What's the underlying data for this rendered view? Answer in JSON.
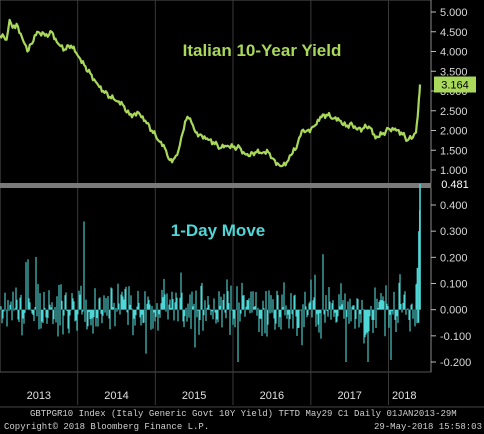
{
  "chart_data": [
    {
      "type": "line",
      "title": "Italian 10-Year Yield",
      "color": "#a9d85a",
      "ylim": [
        0.8,
        5.2
      ],
      "y_ticks": [
        "5.000",
        "4.500",
        "4.000",
        "3.500",
        "3.000",
        "2.500",
        "2.000",
        "1.500",
        "1.000"
      ],
      "last_value_label": "3.164",
      "last_value": 3.164,
      "series": [
        {
          "x": [
            "2013-01-01",
            "2013-02-01",
            "2013-02-15",
            "2013-03-01",
            "2013-03-20",
            "2013-04-15",
            "2013-05-10",
            "2013-06-01",
            "2013-06-25",
            "2013-08-01",
            "2013-09-01",
            "2013-10-01",
            "2013-11-01",
            "2013-12-01",
            "2014-01-01",
            "2014-02-01",
            "2014-03-01",
            "2014-04-01",
            "2014-05-01",
            "2014-06-01",
            "2014-07-01",
            "2014-08-01",
            "2014-09-01",
            "2014-10-15",
            "2014-11-15",
            "2014-12-15",
            "2015-01-15",
            "2015-02-15",
            "2015-03-10",
            "2015-04-01",
            "2015-04-20",
            "2015-05-10",
            "2015-06-01",
            "2015-06-20",
            "2015-07-10",
            "2015-08-01",
            "2015-09-01",
            "2015-10-01",
            "2015-11-01",
            "2015-12-01",
            "2016-01-01",
            "2016-02-01",
            "2016-02-20",
            "2016-03-15",
            "2016-04-15",
            "2016-05-15",
            "2016-06-15",
            "2016-07-10",
            "2016-08-10",
            "2016-09-10",
            "2016-10-01",
            "2016-10-25",
            "2016-11-20",
            "2016-12-15",
            "2017-01-15",
            "2017-02-15",
            "2017-03-15",
            "2017-04-15",
            "2017-05-15",
            "2017-06-15",
            "2017-07-10",
            "2017-08-01",
            "2017-09-01",
            "2017-10-01",
            "2017-11-01",
            "2017-12-01",
            "2018-01-01",
            "2018-02-01",
            "2018-03-01",
            "2018-04-01",
            "2018-04-25",
            "2018-05-10",
            "2018-05-18",
            "2018-05-24",
            "2018-05-29"
          ],
          "y": [
            4.4,
            4.3,
            4.8,
            4.6,
            4.7,
            4.35,
            4.0,
            4.2,
            4.5,
            4.4,
            4.5,
            4.2,
            4.05,
            4.15,
            3.9,
            3.65,
            3.45,
            3.2,
            3.0,
            2.85,
            2.75,
            2.65,
            2.4,
            2.45,
            2.25,
            2.0,
            1.75,
            1.55,
            1.25,
            1.3,
            1.5,
            1.95,
            2.35,
            2.2,
            1.95,
            1.9,
            1.8,
            1.7,
            1.55,
            1.6,
            1.58,
            1.58,
            1.45,
            1.35,
            1.45,
            1.42,
            1.45,
            1.28,
            1.1,
            1.2,
            1.38,
            1.55,
            2.0,
            2.0,
            2.1,
            2.35,
            2.4,
            2.3,
            2.25,
            2.1,
            2.2,
            2.05,
            2.05,
            2.1,
            1.8,
            1.9,
            2.05,
            2.05,
            1.95,
            1.75,
            1.82,
            1.95,
            2.35,
            2.8,
            3.164
          ]
        }
      ]
    },
    {
      "type": "bar",
      "title": "1-Day Move",
      "color": "#4fd6d6",
      "ylim": [
        -0.23,
        0.52
      ],
      "y_ticks": [
        "0.400",
        "0.300",
        "0.200",
        "0.100",
        "0.000",
        "-0.100",
        "-0.200"
      ],
      "last_value_label": "0.481",
      "last_value": 0.481,
      "typical_range": [
        -0.2,
        0.42
      ],
      "recent_moves": [
        {
          "x": "2018-05-15",
          "y": 0.1
        },
        {
          "x": "2018-05-17",
          "y": 0.16
        },
        {
          "x": "2018-05-22",
          "y": -0.05
        },
        {
          "x": "2018-05-24",
          "y": 0.3
        },
        {
          "x": "2018-05-28",
          "y": 0.38
        },
        {
          "x": "2018-05-29",
          "y": 0.481
        }
      ]
    }
  ],
  "x_axis": {
    "labels": [
      "2013",
      "2014",
      "2015",
      "2016",
      "2017",
      "2018"
    ]
  },
  "footer": {
    "line1": "GBTPGR10 Index (Italy Generic Govt 10Y Yield) TFTD May29 C1  Daily 01JAN2013-29M",
    "line2_left": "Copyright© 2018 Bloomberg Finance L.P.",
    "line2_right": "29-May-2018 15:58:03"
  },
  "colors": {
    "background": "#000000",
    "yield_line": "#a9d85a",
    "move_bars": "#4fd6d6",
    "separator": "#7a7a7a"
  }
}
